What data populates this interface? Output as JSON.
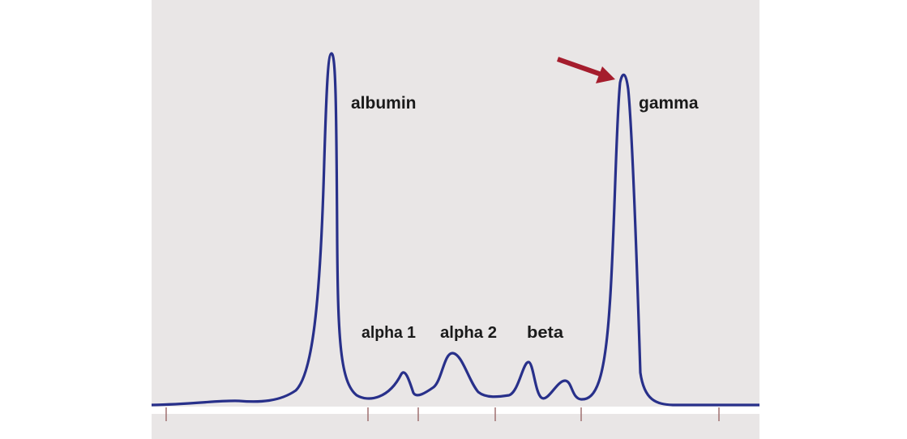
{
  "labels": {
    "albumin": "albumin",
    "alpha1": "alpha 1",
    "alpha2": "alpha 2",
    "beta": "beta",
    "gamma": "gamma"
  },
  "colors": {
    "background": "#e9e6e6",
    "curve": "#28308a",
    "arrow": "#a51d2d",
    "tick": "#a07070"
  },
  "icons": {
    "pointer": "arrow-icon"
  }
}
